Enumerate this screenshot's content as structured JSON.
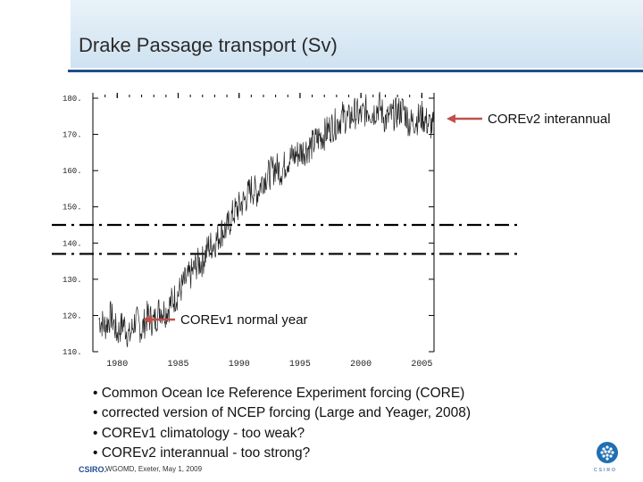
{
  "slide": {
    "title": "Drake Passage transport  (Sv)",
    "bullets": [
      "• Common Ocean Ice Reference Experiment forcing (CORE)",
      "• corrected version of NCEP forcing (Large and Yeager, 2008)",
      "• COREv1 climatology - too weak?",
      "• COREv2 interannual - too strong?"
    ],
    "footer": {
      "brand": "CSIRO.",
      "text": "WGOMD, Exeter, May 1, 2009"
    },
    "logo_text": "CSIRO"
  },
  "chart_data": {
    "type": "line",
    "title": "",
    "xlabel": "",
    "ylabel": "",
    "xlim": [
      1978,
      2006
    ],
    "ylim": [
      110,
      180
    ],
    "x_ticks": [
      1980,
      1985,
      1990,
      1995,
      2000,
      2005
    ],
    "x_tick_labels": [
      "1980",
      "1985",
      "1990",
      "1995",
      "2000",
      "2005"
    ],
    "y_ticks": [
      110,
      120,
      130,
      140,
      150,
      160,
      170,
      180
    ],
    "y_tick_labels": [
      "110.",
      "120.",
      "130.",
      "140.",
      "150.",
      "160.",
      "170.",
      "180."
    ],
    "series": [
      {
        "name": "COREv2 interannual",
        "color": "#222222",
        "x": [
          1978.5,
          1979,
          1979.5,
          1980,
          1980.5,
          1981,
          1981.5,
          1982,
          1982.5,
          1983,
          1983.5,
          1984,
          1984.5,
          1985,
          1985.5,
          1986,
          1986.5,
          1987,
          1987.5,
          1988,
          1988.5,
          1989,
          1989.5,
          1990,
          1990.5,
          1991,
          1991.5,
          1992,
          1992.5,
          1993,
          1993.5,
          1994,
          1994.5,
          1995,
          1995.5,
          1996,
          1996.5,
          1997,
          1997.5,
          1998,
          1998.5,
          1999,
          1999.5,
          2000,
          2000.5,
          2001,
          2001.5,
          2002,
          2002.5,
          2003,
          2003.5,
          2004,
          2004.5,
          2005,
          2005.5,
          2006
        ],
        "y": [
          119,
          117,
          120,
          115,
          118,
          114,
          119,
          116,
          120,
          118,
          122,
          121,
          124,
          126,
          129,
          131,
          134,
          135,
          139,
          140,
          143,
          144,
          148,
          150,
          152,
          155,
          154,
          158,
          159,
          161,
          160,
          163,
          164,
          165,
          166,
          167,
          169,
          170,
          172,
          173,
          175,
          174,
          176,
          175,
          177,
          176,
          178,
          174,
          175,
          176,
          177,
          173,
          174,
          175,
          173,
          172
        ]
      },
      {
        "name": "COREv1 normal year",
        "color": "#000000",
        "x": [
          1978,
          2006
        ],
        "y": [
          137,
          137
        ],
        "style": "dash-dot"
      }
    ],
    "reference_lines": [
      {
        "y": 145,
        "style": "dash-dot"
      },
      {
        "y": 137,
        "style": "dash-dot"
      }
    ],
    "annotations": [
      {
        "text": "COREv2 interannual",
        "arrow_to": {
          "x": 2006,
          "y": 172
        }
      },
      {
        "text": "COREv1 normal year",
        "arrow_to": {
          "x": 1983,
          "y": 118
        }
      }
    ],
    "grid": false,
    "legend": "none"
  }
}
